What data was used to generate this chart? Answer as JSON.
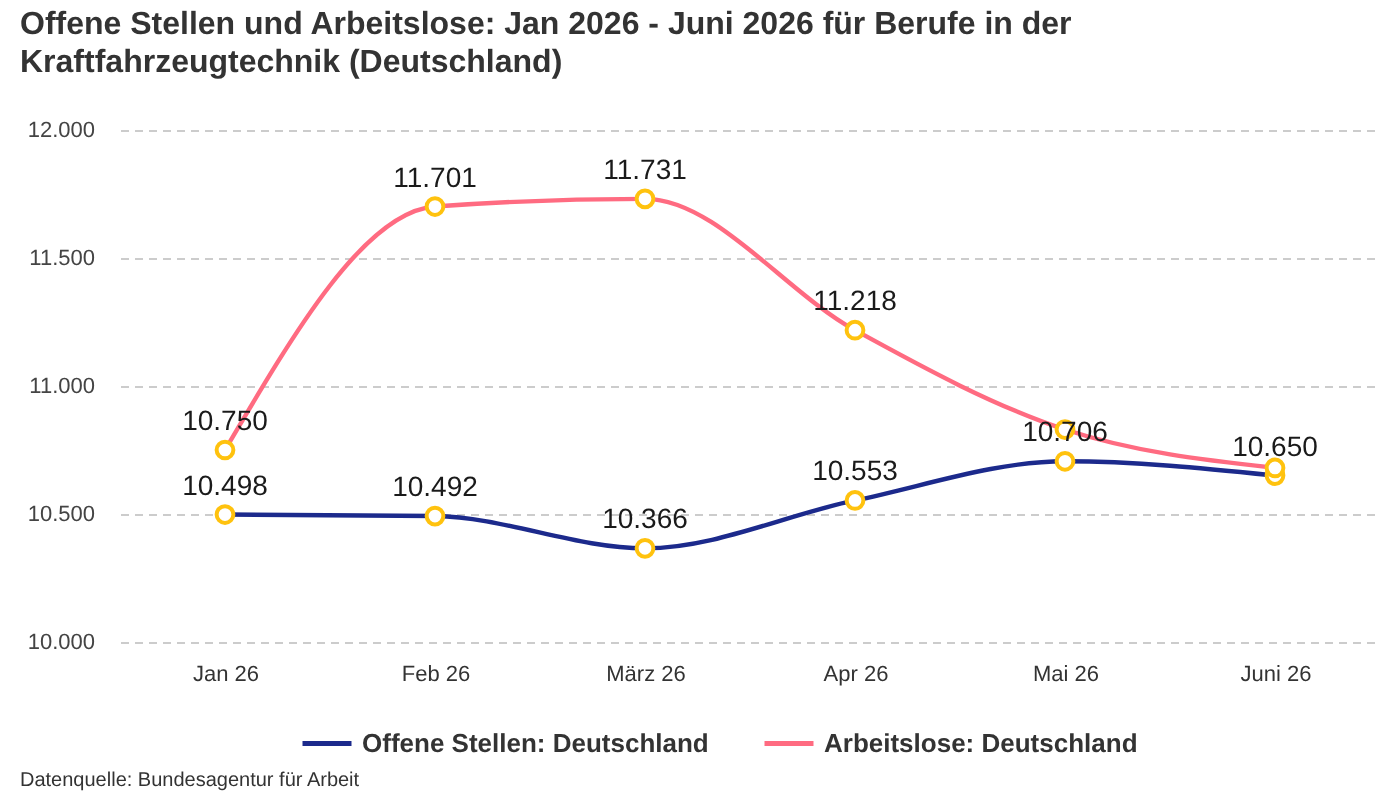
{
  "chart_data": {
    "type": "line",
    "title": "Offene Stellen und Arbeitslose: Jan 2026 - Juni 2026 für Berufe in der Kraftfahrzeugtechnik (Deutschland)",
    "categories": [
      "Jan 26",
      "Feb 26",
      "März 26",
      "Apr 26",
      "Mai 26",
      "Juni 26"
    ],
    "series": [
      {
        "name": "Offene Stellen: Deutschland",
        "color": "#1c2a8c",
        "values": [
          10498,
          10492,
          10366,
          10553,
          10706,
          10650
        ],
        "value_labels": [
          "10.498",
          "10.492",
          "10.366",
          "10.553",
          "10.706",
          "10.650"
        ]
      },
      {
        "name": "Arbeitslose: Deutschland",
        "color": "#ff6b81",
        "values": [
          10750,
          11701,
          11731,
          11218,
          10830,
          10680
        ],
        "value_labels": [
          "10.750",
          "11.701",
          "11.731",
          "11.218",
          null,
          null
        ]
      }
    ],
    "ylim": [
      10000,
      12000
    ],
    "yticks": [
      {
        "value": 10000,
        "label": "10.000"
      },
      {
        "value": 10500,
        "label": "10.500"
      },
      {
        "value": 11000,
        "label": "11.000"
      },
      {
        "value": 11500,
        "label": "11.500"
      },
      {
        "value": 12000,
        "label": "12.000"
      }
    ],
    "grid": "y",
    "legend": "bottom",
    "marker": "circle",
    "annotations": [
      "Datenquelle: Bundesagentur für Arbeit"
    ]
  }
}
